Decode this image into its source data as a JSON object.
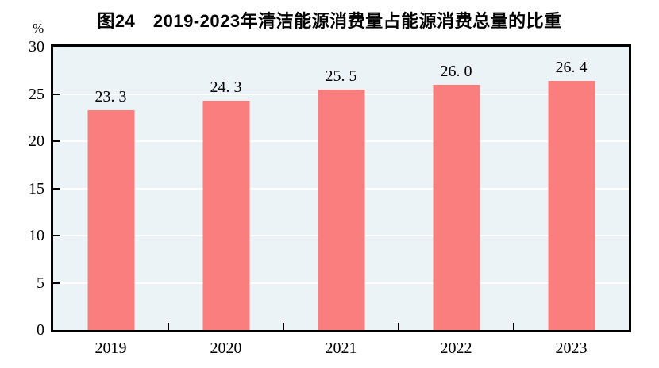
{
  "chart_data": {
    "type": "bar",
    "title": "图24　2019-2023年清洁能源消费量占能源消费总量的比重",
    "unit": "%",
    "categories": [
      "2019",
      "2020",
      "2021",
      "2022",
      "2023"
    ],
    "values": [
      23.3,
      24.3,
      25.5,
      26.0,
      26.4
    ],
    "value_labels": [
      "23. 3",
      "24. 3",
      "25. 5",
      "26. 0",
      "26. 4"
    ],
    "xlabel": "",
    "ylabel": "%",
    "ylim": [
      0,
      30
    ],
    "yticks": [
      0,
      5,
      10,
      15,
      20,
      25,
      30
    ],
    "grid": true,
    "legend": "none",
    "colors": {
      "bar": "#FA7E7E",
      "plot_background": "#ECF3F7",
      "gridline": "#FFFFFF",
      "axis": "#000000",
      "text": "#000000",
      "page_background": "#FFFFFF"
    }
  }
}
